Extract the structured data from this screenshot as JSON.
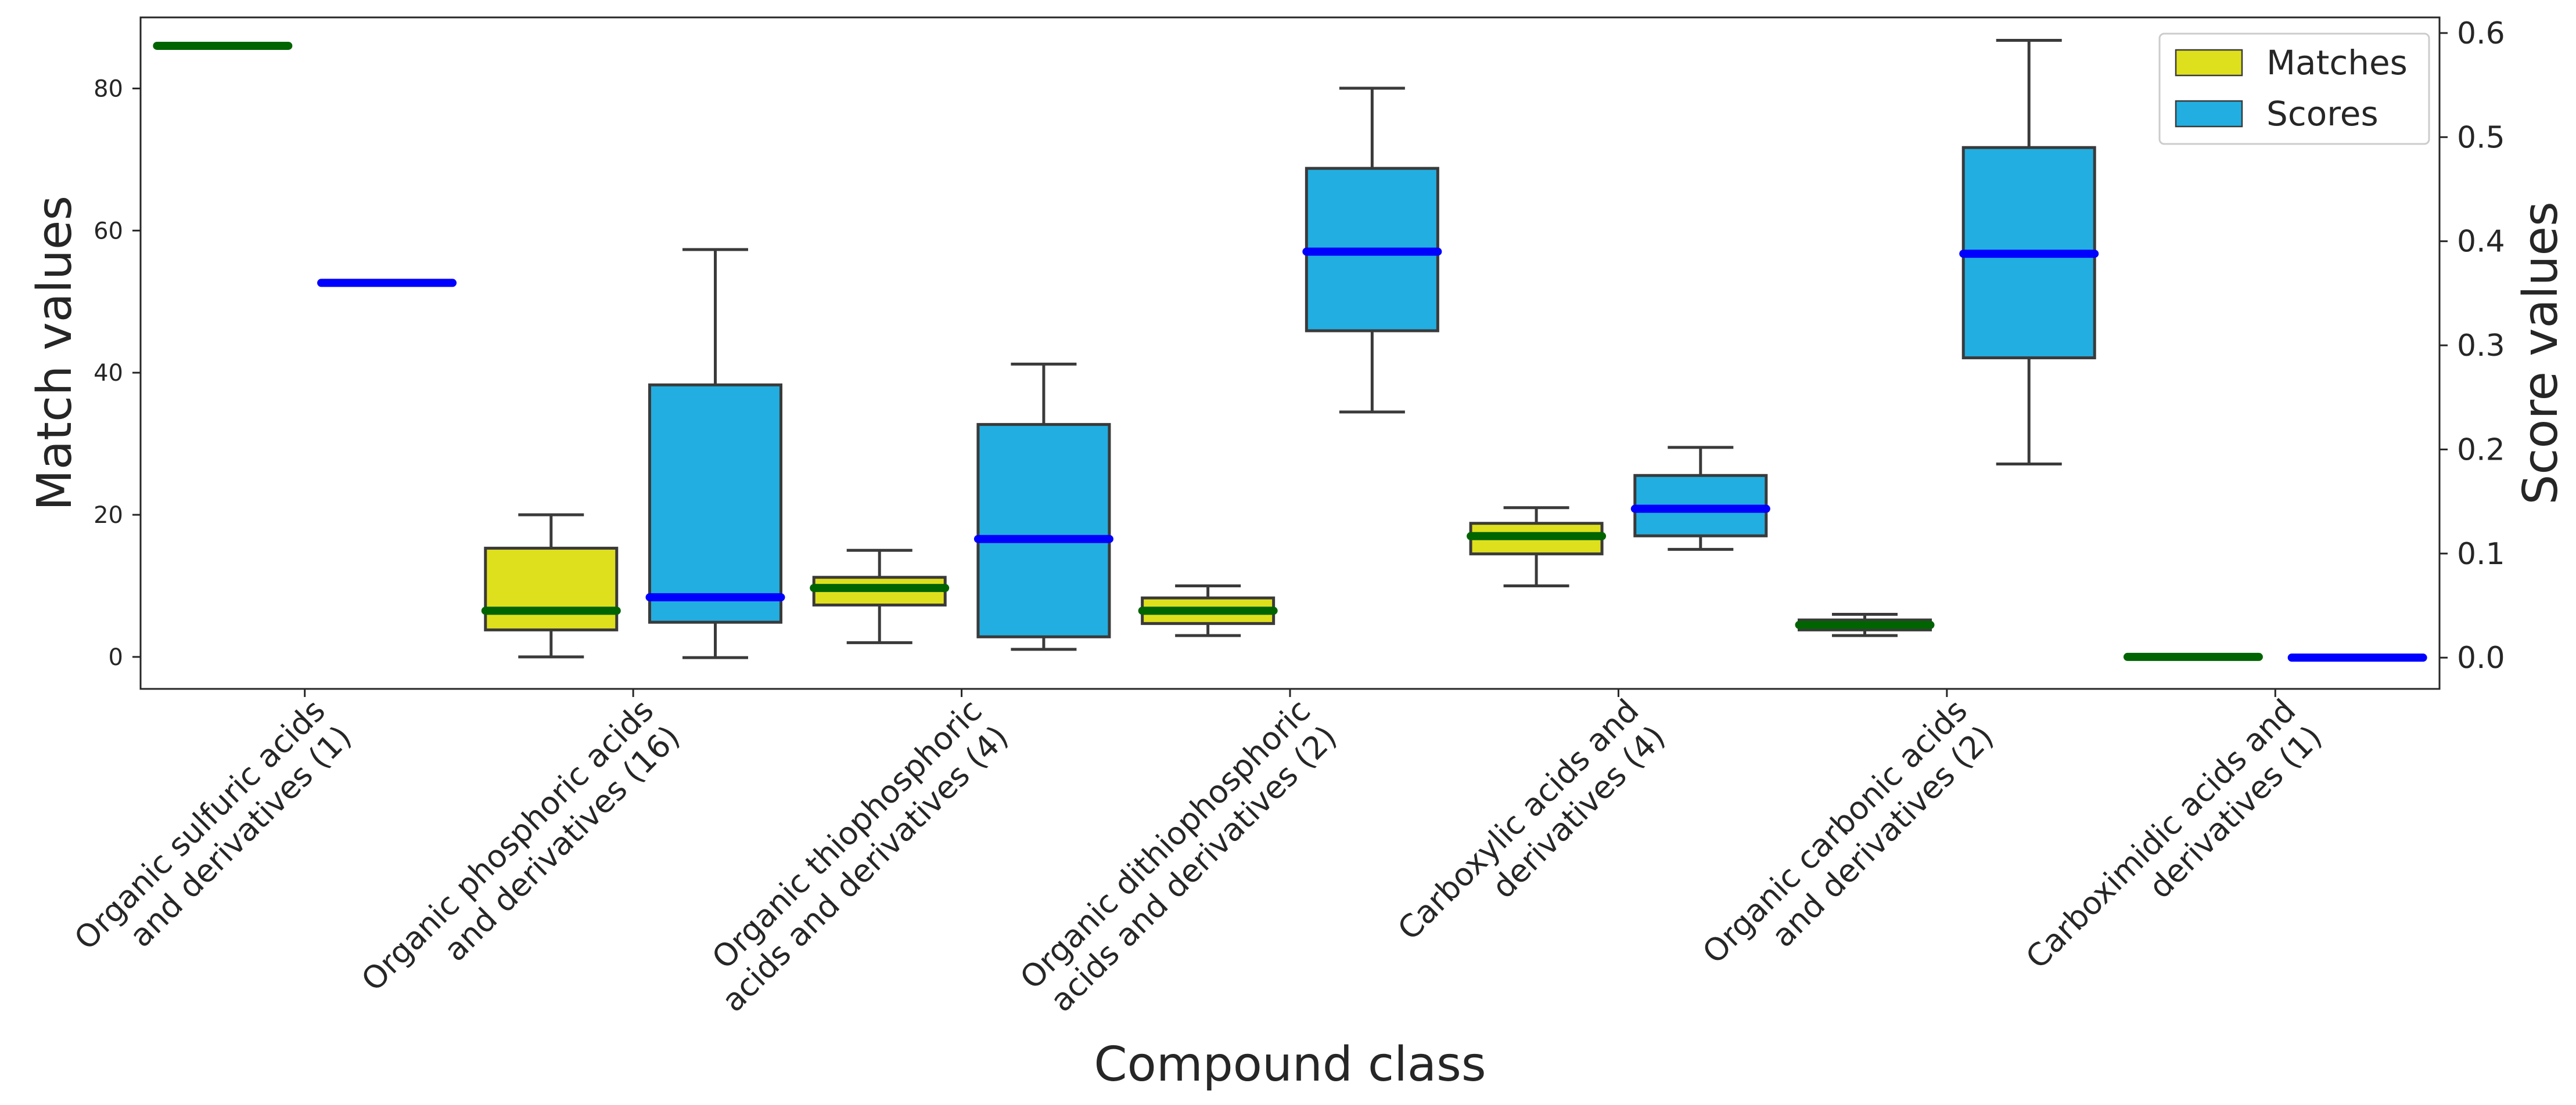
{
  "chart_data": {
    "type": "box",
    "xlabel": "Compound class",
    "ylabel_left": "Match values",
    "ylabel_right": "Score values",
    "ylim_left": [
      -4.5,
      90
    ],
    "ylim_right": [
      -0.03,
      0.615
    ],
    "yticks_left": [
      0,
      20,
      40,
      60,
      80
    ],
    "yticks_right": [
      0.0,
      0.1,
      0.2,
      0.3,
      0.4,
      0.5,
      0.6
    ],
    "legend_position": "top-right",
    "grid": false,
    "categories": [
      [
        "Organic sulfuric acids",
        "and derivatives (1)"
      ],
      [
        "Organic phosphoric acids",
        "and derivatives (16)"
      ],
      [
        "Organic thiophosphoric",
        "acids and derivatives (4)"
      ],
      [
        "Organic dithiophosphoric",
        "acids and derivatives (2)"
      ],
      [
        "Carboxylic acids and",
        "derivatives (4)"
      ],
      [
        "Organic carbonic acids",
        "and derivatives (2)"
      ],
      [
        "Carboximidic acids and",
        "derivatives (1)"
      ]
    ],
    "series": [
      {
        "name": "Matches",
        "axis": "left",
        "box_color": "#dfe01d",
        "median_color": "#006400",
        "boxes": [
          {
            "whislo": 86,
            "q1": 86,
            "med": 86,
            "q3": 86,
            "whishi": 86
          },
          {
            "whislo": 0,
            "q1": 3.8,
            "med": 6.5,
            "q3": 15.3,
            "whishi": 20
          },
          {
            "whislo": 2,
            "q1": 7.3,
            "med": 9.7,
            "q3": 11.2,
            "whishi": 15
          },
          {
            "whislo": 3,
            "q1": 4.7,
            "med": 6.5,
            "q3": 8.3,
            "whishi": 10
          },
          {
            "whislo": 10,
            "q1": 14.5,
            "med": 17,
            "q3": 18.8,
            "whishi": 21
          },
          {
            "whislo": 3,
            "q1": 3.8,
            "med": 4.5,
            "q3": 5.2,
            "whishi": 6
          },
          {
            "whislo": 0,
            "q1": 0,
            "med": 0,
            "q3": 0,
            "whishi": 0
          }
        ]
      },
      {
        "name": "Scores",
        "axis": "right",
        "box_color": "#22aee0",
        "median_color": "#0000ff",
        "boxes": [
          {
            "whislo": 0.36,
            "q1": 0.36,
            "med": 0.36,
            "q3": 0.36,
            "whishi": 0.36
          },
          {
            "whislo": 0.0,
            "q1": 0.034,
            "med": 0.058,
            "q3": 0.262,
            "whishi": 0.392
          },
          {
            "whislo": 0.008,
            "q1": 0.02,
            "med": 0.114,
            "q3": 0.224,
            "whishi": 0.282
          },
          {
            "whislo": 0.236,
            "q1": 0.314,
            "med": 0.39,
            "q3": 0.47,
            "whishi": 0.547
          },
          {
            "whislo": 0.104,
            "q1": 0.117,
            "med": 0.143,
            "q3": 0.175,
            "whishi": 0.202
          },
          {
            "whislo": 0.186,
            "q1": 0.288,
            "med": 0.388,
            "q3": 0.49,
            "whishi": 0.593
          },
          {
            "whislo": 0.0,
            "q1": 0.0,
            "med": 0.0,
            "q3": 0.0,
            "whishi": 0.0
          }
        ]
      }
    ]
  }
}
